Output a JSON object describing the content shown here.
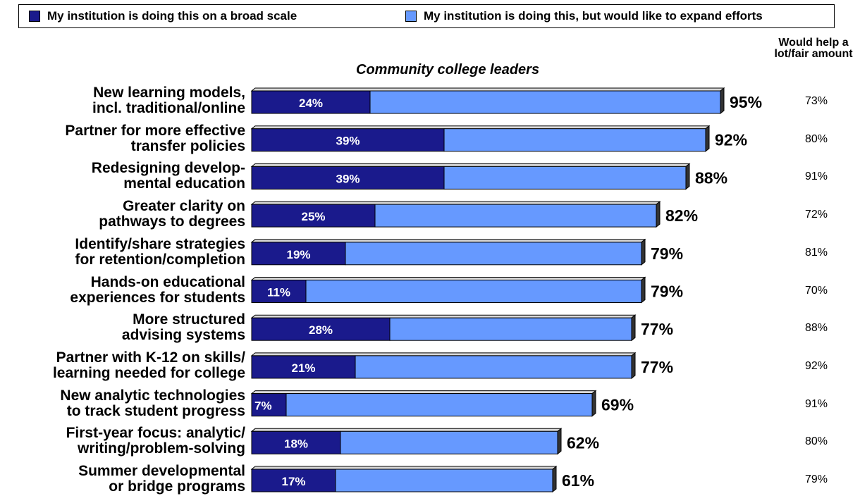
{
  "legend": {
    "broad_scale_label": "My institution is doing this on a broad scale",
    "expand_label": "My institution is doing this, but would like to expand efforts"
  },
  "colors": {
    "broad_scale": "#1a1a8c",
    "expand": "#6699ff",
    "bar_side": "#333333"
  },
  "chart_data": {
    "type": "bar",
    "orientation": "horizontal",
    "stacked": true,
    "title": "Community college leaders",
    "right_column_header": "Would help a lot/fair amount",
    "categories": [
      [
        "New learning models,",
        "incl. traditional/online"
      ],
      [
        "Partner for more effective",
        "transfer policies"
      ],
      [
        "Redesigning develop-",
        "mental education"
      ],
      [
        "Greater clarity on",
        "pathways to degrees"
      ],
      [
        "Identify/share strategies",
        "for retention/completion"
      ],
      [
        "Hands-on educational",
        "experiences for students"
      ],
      [
        "More structured",
        "advising systems"
      ],
      [
        "Partner with K-12 on skills/",
        "learning needed for college"
      ],
      [
        "New analytic technologies",
        "to track student progress"
      ],
      [
        "First-year focus:  analytic/",
        "writing/problem-solving"
      ],
      [
        "Summer developmental",
        "or bridge programs"
      ]
    ],
    "series": [
      {
        "name": "My institution is doing this on a broad scale",
        "values": [
          24,
          39,
          39,
          25,
          19,
          11,
          28,
          21,
          7,
          18,
          17
        ]
      },
      {
        "name": "My institution is doing this, but would like to expand efforts",
        "values": [
          71,
          53,
          49,
          57,
          60,
          68,
          49,
          56,
          62,
          44,
          44
        ]
      }
    ],
    "totals": [
      95,
      92,
      88,
      82,
      79,
      79,
      77,
      77,
      69,
      62,
      61
    ],
    "would_help": [
      73,
      80,
      91,
      72,
      81,
      70,
      88,
      92,
      91,
      80,
      79
    ],
    "legend_position": "top",
    "grid": false
  }
}
